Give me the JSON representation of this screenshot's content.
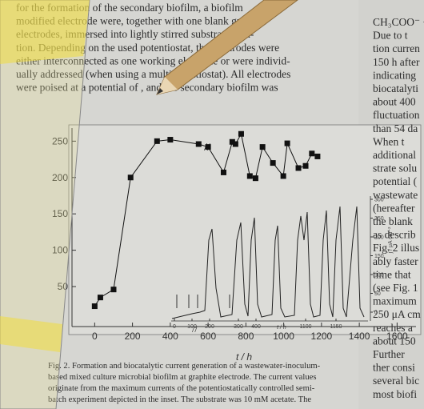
{
  "page": {
    "left_column": [
      "for the formation of the secondary biofilm, a biofilm",
      "modified electrode were, together with one blank graphite",
      "electrodes, immersed into lightly stirred substrate solu-",
      "tion. Depending on the used potentiostat, the electrodes were",
      "either interconnected as one working electrode or were individ-",
      "ually addressed (when using a multipotentiostat). All electrodes",
      "were poised at a potential of , and the secondary biofilm was"
    ],
    "right_column": [
      "CH₃COO⁻ +",
      "Due to t",
      "tion curren",
      "150 h after",
      "indicating",
      "biocatalyti",
      "about 400",
      "fluctuation",
      "than 54 da",
      "When t",
      "additional",
      "strate solu",
      "potential (",
      "wastewate",
      "(hereafter",
      "the blank",
      "as describ",
      "Fig. 2 illus",
      "ably faster",
      "time that",
      "(see Fig. 1",
      "maximum",
      "250 μA cm",
      "reaches a",
      "about 150",
      "Further",
      "ther consi",
      "several bic",
      "most biofi"
    ],
    "caption": [
      "Fig. 2. Formation and biocatalytic current generation of a wastewater-inoculum-",
      "based mixed culture microbial biofilm at graphite electrode. The current values",
      "originate from the maximum currents of the potentiostatically controlled semi-",
      "batch experiment depicted in the inset. The substrate was 10 mM acetate. The"
    ]
  },
  "chart_data": {
    "type": "line",
    "x_label": "t / h",
    "x": [
      0,
      30,
      100,
      190,
      330,
      400,
      550,
      600,
      682,
      728,
      745,
      775,
      821,
      851,
      888,
      943,
      998,
      1019,
      1078,
      1116,
      1149,
      1179
    ],
    "series": [
      {
        "color": "#111111",
        "values": [
          23,
          35,
          46,
          200,
          250,
          252,
          246,
          242,
          207,
          249,
          246,
          260,
          202,
          199,
          242,
          220,
          202,
          247,
          213,
          216,
          233,
          229
        ]
      }
    ],
    "xlim": [
      -120,
      1700
    ],
    "ylim": [
      -5,
      268
    ],
    "xticks": [
      0,
      200,
      400,
      600,
      800,
      1000,
      1200,
      1400,
      1600
    ],
    "yticks": [
      50,
      100,
      150,
      200,
      250
    ],
    "inset": {
      "y_label": "j / μA cm⁻²",
      "x_label": "t / h",
      "ylim": [
        0,
        300
      ],
      "yticks": [
        0,
        50,
        100,
        150,
        200,
        250,
        300
      ],
      "xticks": [
        0,
        100,
        200,
        300,
        400,
        1100,
        1150
      ]
    }
  }
}
